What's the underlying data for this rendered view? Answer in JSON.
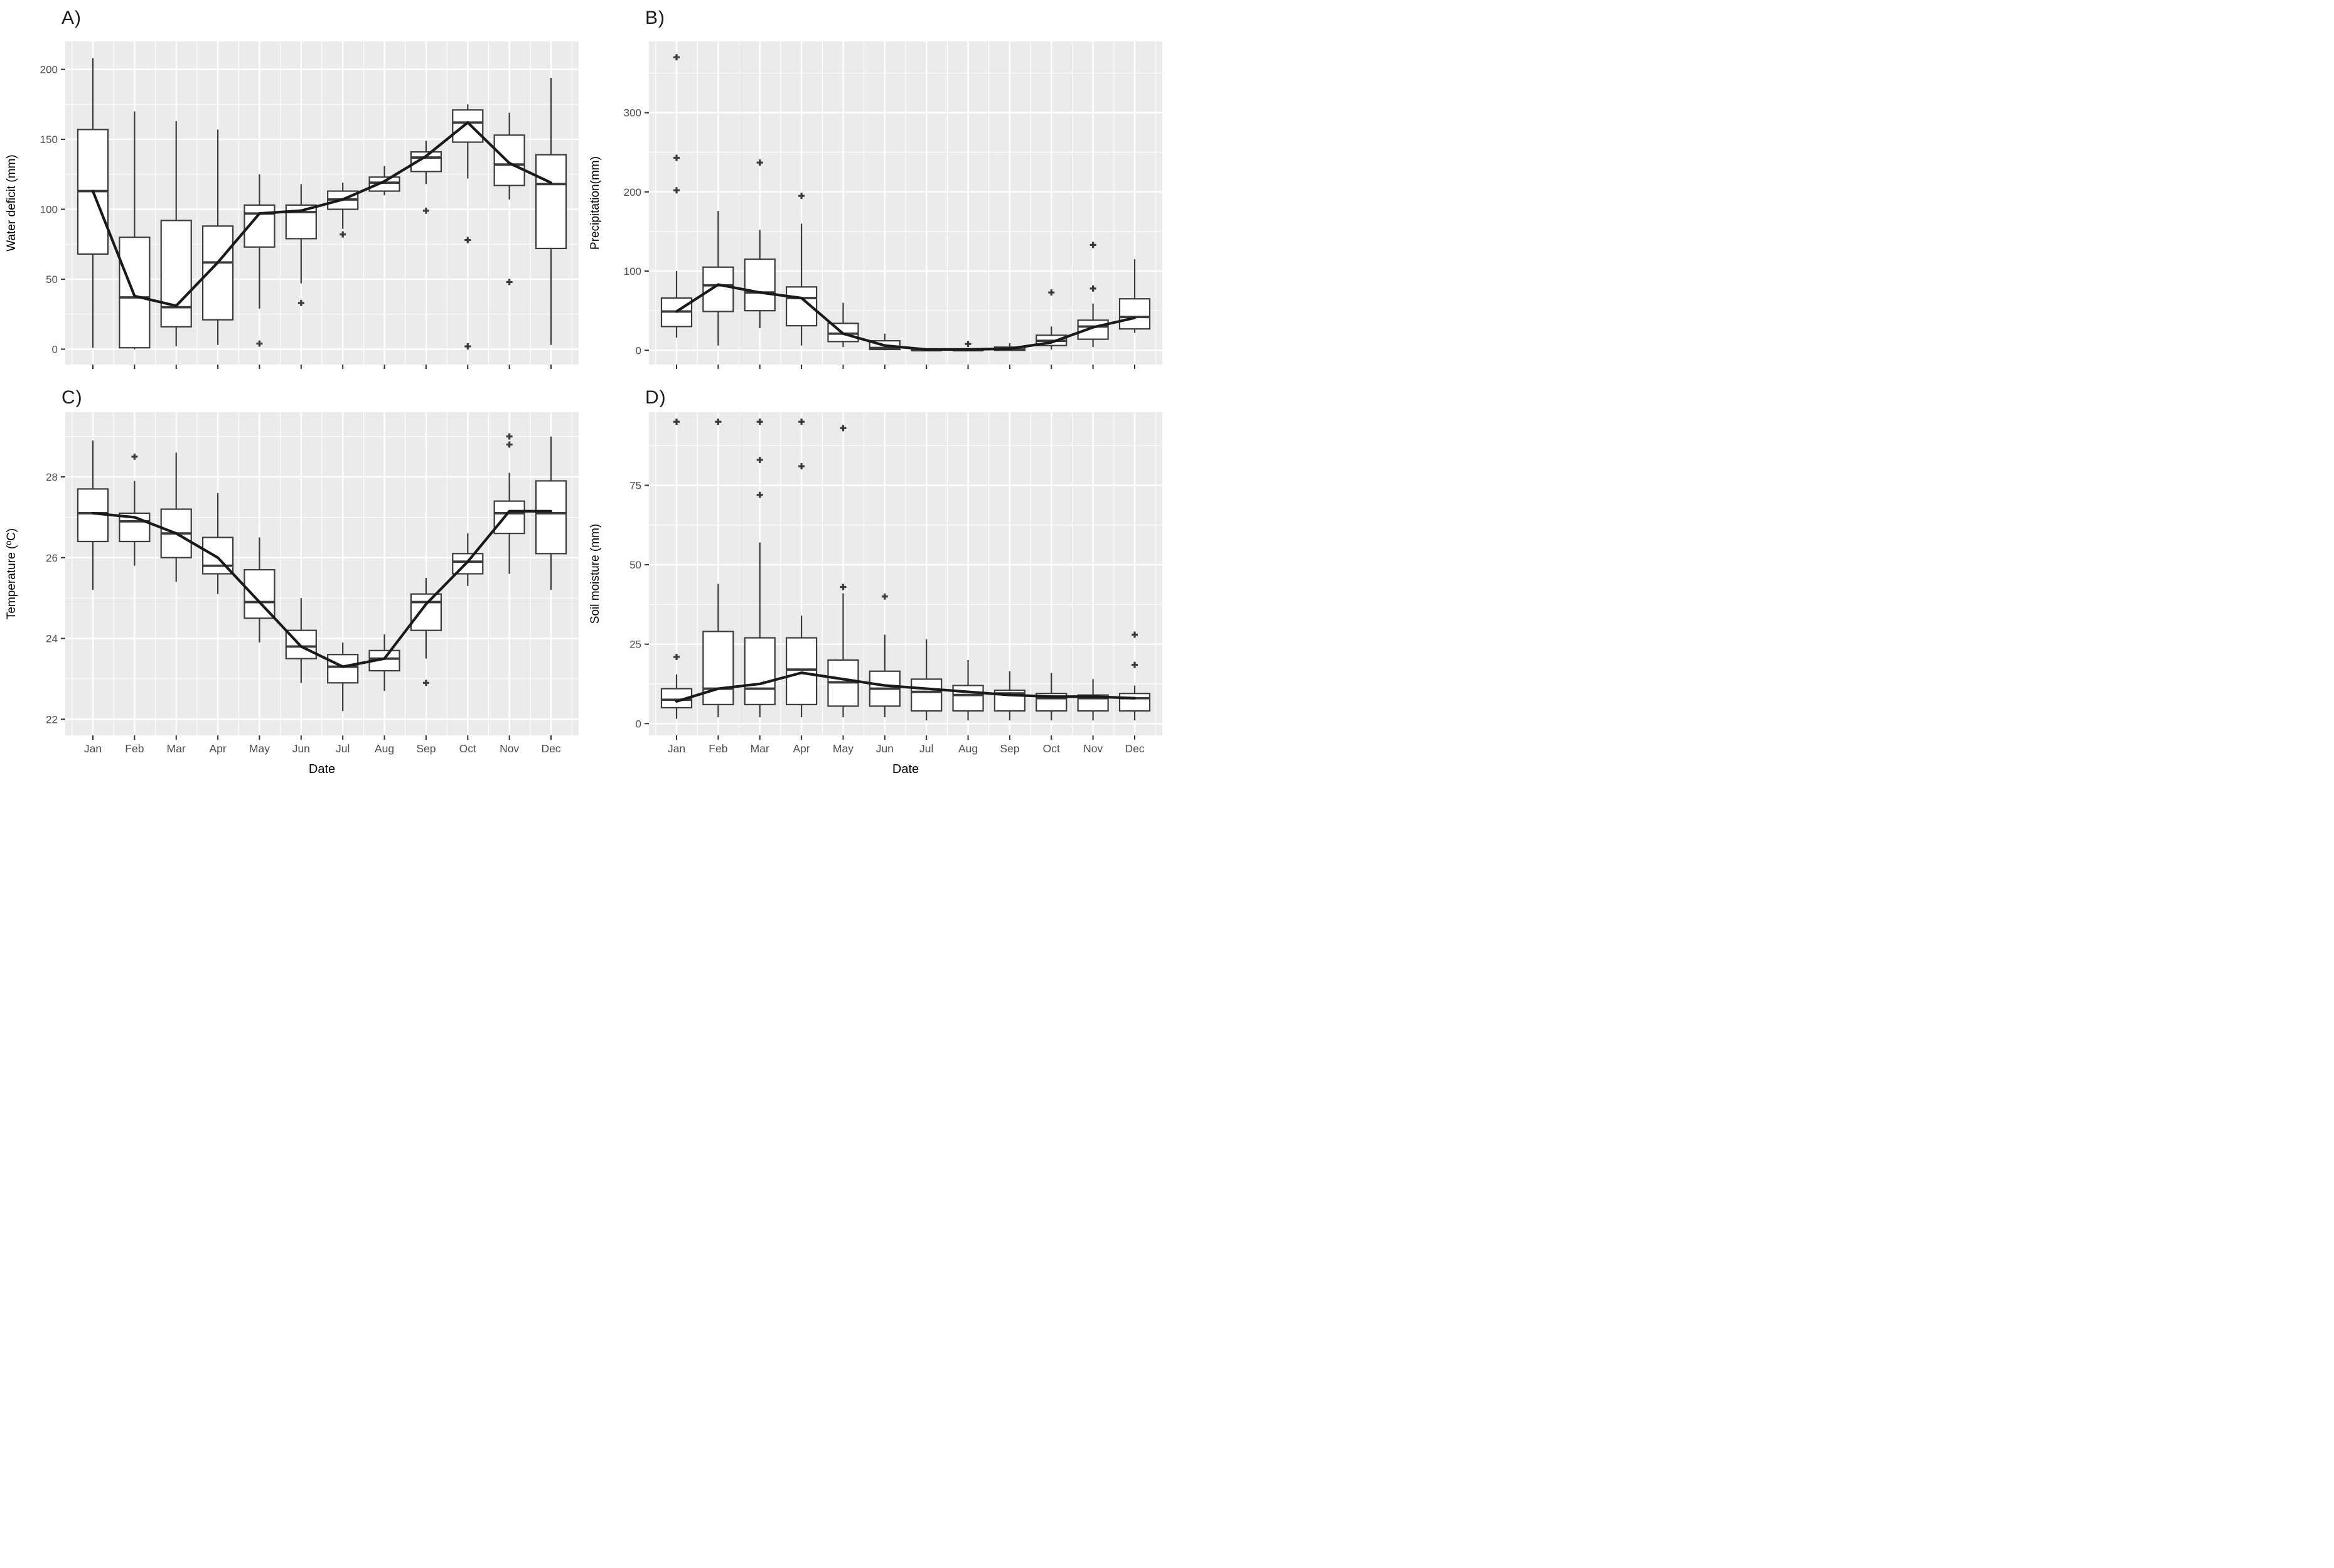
{
  "page": {
    "background": "#ffffff"
  },
  "months": [
    "Jan",
    "Feb",
    "Mar",
    "Apr",
    "May",
    "Jun",
    "Jul",
    "Aug",
    "Sep",
    "Oct",
    "Nov",
    "Dec"
  ],
  "colors": {
    "panel_background": "#ebebeb",
    "grid_line": "#ffffff",
    "box_stroke": "#3b3b3b",
    "box_fill": "#ffffff",
    "mean_line": "#1a1a1a",
    "tick_label": "#4d4d4d",
    "axis_title": "#000000",
    "outlier": "#3b3b3b"
  },
  "chart_data": [
    {
      "id": "A",
      "title": "A)",
      "type": "box",
      "ylabel": "Water deficit (mm)",
      "xlabel": "",
      "show_x_labels": false,
      "yticks": [
        0,
        50,
        100,
        150,
        200
      ],
      "ylim": [
        -11,
        220
      ],
      "grid": true,
      "legend": "none",
      "boxes": [
        {
          "m": "Jan",
          "low": 1,
          "q1": 68,
          "med": 113,
          "q3": 157,
          "high": 208,
          "out": []
        },
        {
          "m": "Feb",
          "low": 0,
          "q1": 1,
          "med": 37,
          "q3": 80,
          "high": 170,
          "out": []
        },
        {
          "m": "Mar",
          "low": 2,
          "q1": 16,
          "med": 30,
          "q3": 92,
          "high": 163,
          "out": []
        },
        {
          "m": "Apr",
          "low": 3,
          "q1": 21,
          "med": 62,
          "q3": 88,
          "high": 157,
          "out": []
        },
        {
          "m": "May",
          "low": 29,
          "q1": 73,
          "med": 97,
          "q3": 103,
          "high": 125,
          "out": [
            4
          ]
        },
        {
          "m": "Jun",
          "low": 47,
          "q1": 79,
          "med": 98,
          "q3": 103,
          "high": 118,
          "out": [
            33
          ]
        },
        {
          "m": "Jul",
          "low": 86,
          "q1": 100,
          "med": 107,
          "q3": 113,
          "high": 119,
          "out": [
            82
          ]
        },
        {
          "m": "Aug",
          "low": 110,
          "q1": 113,
          "med": 119,
          "q3": 123,
          "high": 131,
          "out": []
        },
        {
          "m": "Sep",
          "low": 118,
          "q1": 127,
          "med": 137,
          "q3": 141,
          "high": 149,
          "out": [
            99
          ]
        },
        {
          "m": "Oct",
          "low": 122,
          "q1": 148,
          "med": 162,
          "q3": 171,
          "high": 175,
          "out": [
            78,
            2
          ]
        },
        {
          "m": "Nov",
          "low": 107,
          "q1": 117,
          "med": 132,
          "q3": 153,
          "high": 169,
          "out": [
            48
          ]
        },
        {
          "m": "Dec",
          "low": 3,
          "q1": 72,
          "med": 118,
          "q3": 139,
          "high": 194,
          "out": []
        }
      ],
      "mean_line": [
        113,
        38,
        31,
        62,
        97,
        99,
        107,
        120,
        138,
        162,
        133,
        119
      ]
    },
    {
      "id": "B",
      "title": "B)",
      "type": "box",
      "ylabel": "Precipitation(mm)",
      "xlabel": "",
      "show_x_labels": false,
      "yticks": [
        0,
        100,
        200,
        300
      ],
      "ylim": [
        -18,
        390
      ],
      "grid": true,
      "legend": "none",
      "boxes": [
        {
          "m": "Jan",
          "low": 16,
          "q1": 30,
          "med": 49,
          "q3": 66,
          "high": 100,
          "out": [
            370,
            243,
            202
          ]
        },
        {
          "m": "Feb",
          "low": 6,
          "q1": 49,
          "med": 82,
          "q3": 105,
          "high": 176,
          "out": []
        },
        {
          "m": "Mar",
          "low": 28,
          "q1": 50,
          "med": 73,
          "q3": 115,
          "high": 152,
          "out": [
            237
          ]
        },
        {
          "m": "Apr",
          "low": 6,
          "q1": 31,
          "med": 66,
          "q3": 80,
          "high": 160,
          "out": [
            195
          ]
        },
        {
          "m": "May",
          "low": 4,
          "q1": 11,
          "med": 21,
          "q3": 34,
          "high": 60,
          "out": []
        },
        {
          "m": "Jun",
          "low": 0,
          "q1": 1,
          "med": 3,
          "q3": 12,
          "high": 21,
          "out": []
        },
        {
          "m": "Jul",
          "low": 0,
          "q1": 0,
          "med": 0,
          "q3": 1,
          "high": 2,
          "out": []
        },
        {
          "m": "Aug",
          "low": 0,
          "q1": 0,
          "med": 0,
          "q3": 1,
          "high": 2,
          "out": [
            8
          ]
        },
        {
          "m": "Sep",
          "low": 0,
          "q1": 0,
          "med": 1,
          "q3": 4,
          "high": 9,
          "out": []
        },
        {
          "m": "Oct",
          "low": 1,
          "q1": 6,
          "med": 12,
          "q3": 19,
          "high": 30,
          "out": [
            73
          ]
        },
        {
          "m": "Nov",
          "low": 4,
          "q1": 14,
          "med": 30,
          "q3": 38,
          "high": 59,
          "out": [
            133,
            78
          ]
        },
        {
          "m": "Dec",
          "low": 22,
          "q1": 27,
          "med": 42,
          "q3": 65,
          "high": 115,
          "out": []
        }
      ],
      "mean_line": [
        49,
        83,
        73,
        66,
        21,
        6,
        1,
        1,
        2,
        10,
        29,
        41
      ]
    },
    {
      "id": "C",
      "title": "C)",
      "type": "box",
      "ylabel": "Temperature (ºC)",
      "xlabel": "Date",
      "show_x_labels": true,
      "yticks": [
        22,
        24,
        26,
        28
      ],
      "ylim": [
        21.6,
        29.6
      ],
      "grid": true,
      "legend": "none",
      "boxes": [
        {
          "m": "Jan",
          "low": 25.2,
          "q1": 26.4,
          "med": 27.1,
          "q3": 27.7,
          "high": 28.9,
          "out": []
        },
        {
          "m": "Feb",
          "low": 25.8,
          "q1": 26.4,
          "med": 26.9,
          "q3": 27.1,
          "high": 27.9,
          "out": [
            28.5
          ]
        },
        {
          "m": "Mar",
          "low": 25.4,
          "q1": 26.0,
          "med": 26.6,
          "q3": 27.2,
          "high": 28.6,
          "out": []
        },
        {
          "m": "Apr",
          "low": 25.1,
          "q1": 25.6,
          "med": 25.8,
          "q3": 26.5,
          "high": 27.6,
          "out": []
        },
        {
          "m": "May",
          "low": 23.9,
          "q1": 24.5,
          "med": 24.9,
          "q3": 25.7,
          "high": 26.5,
          "out": []
        },
        {
          "m": "Jun",
          "low": 22.9,
          "q1": 23.5,
          "med": 23.8,
          "q3": 24.2,
          "high": 25.0,
          "out": []
        },
        {
          "m": "Jul",
          "low": 22.2,
          "q1": 22.9,
          "med": 23.3,
          "q3": 23.6,
          "high": 23.9,
          "out": []
        },
        {
          "m": "Aug",
          "low": 22.7,
          "q1": 23.2,
          "med": 23.5,
          "q3": 23.7,
          "high": 24.1,
          "out": []
        },
        {
          "m": "Sep",
          "low": 23.5,
          "q1": 24.2,
          "med": 24.9,
          "q3": 25.1,
          "high": 25.5,
          "out": [
            22.9
          ]
        },
        {
          "m": "Oct",
          "low": 25.3,
          "q1": 25.6,
          "med": 25.9,
          "q3": 26.1,
          "high": 26.6,
          "out": []
        },
        {
          "m": "Nov",
          "low": 25.6,
          "q1": 26.6,
          "med": 27.1,
          "q3": 27.4,
          "high": 28.1,
          "out": [
            29.0,
            28.8
          ]
        },
        {
          "m": "Dec",
          "low": 25.2,
          "q1": 26.1,
          "med": 27.1,
          "q3": 27.9,
          "high": 29.0,
          "out": []
        }
      ],
      "mean_line": [
        27.1,
        27.0,
        26.6,
        26.0,
        24.9,
        23.8,
        23.3,
        23.5,
        24.85,
        25.9,
        27.15,
        27.15
      ]
    },
    {
      "id": "D",
      "title": "D)",
      "type": "box",
      "ylabel": "Soil moisture (mm)",
      "xlabel": "Date",
      "show_x_labels": true,
      "yticks": [
        0,
        25,
        50,
        75
      ],
      "ylim": [
        -3.7,
        98
      ],
      "grid": true,
      "legend": "none",
      "boxes": [
        {
          "m": "Jan",
          "low": 1.5,
          "q1": 5,
          "med": 7.5,
          "q3": 11,
          "high": 15.5,
          "out": [
            95,
            21
          ]
        },
        {
          "m": "Feb",
          "low": 2,
          "q1": 6,
          "med": 11,
          "q3": 29,
          "high": 44,
          "out": [
            95
          ]
        },
        {
          "m": "Mar",
          "low": 2,
          "q1": 6,
          "med": 11,
          "q3": 27,
          "high": 57,
          "out": [
            95,
            83,
            72
          ]
        },
        {
          "m": "Apr",
          "low": 2,
          "q1": 6,
          "med": 17,
          "q3": 27,
          "high": 34,
          "out": [
            95,
            81
          ]
        },
        {
          "m": "May",
          "low": 2,
          "q1": 5.5,
          "med": 13,
          "q3": 20,
          "high": 41,
          "out": [
            93,
            43
          ]
        },
        {
          "m": "Jun",
          "low": 2,
          "q1": 5.5,
          "med": 11,
          "q3": 16.5,
          "high": 28,
          "out": [
            40
          ]
        },
        {
          "m": "Jul",
          "low": 1,
          "q1": 4,
          "med": 10,
          "q3": 14,
          "high": 26.5,
          "out": []
        },
        {
          "m": "Aug",
          "low": 1,
          "q1": 4,
          "med": 9,
          "q3": 12,
          "high": 20,
          "out": []
        },
        {
          "m": "Sep",
          "low": 1,
          "q1": 4,
          "med": 9.5,
          "q3": 10.5,
          "high": 16.5,
          "out": []
        },
        {
          "m": "Oct",
          "low": 1,
          "q1": 4,
          "med": 8,
          "q3": 9.5,
          "high": 16,
          "out": []
        },
        {
          "m": "Nov",
          "low": 1,
          "q1": 4,
          "med": 8,
          "q3": 9,
          "high": 14,
          "out": []
        },
        {
          "m": "Dec",
          "low": 1,
          "q1": 4,
          "med": 8,
          "q3": 9.5,
          "high": 12,
          "out": [
            28,
            18.5
          ]
        }
      ],
      "mean_line": [
        7,
        11,
        12.5,
        16,
        14,
        12,
        11,
        10,
        9,
        8.5,
        8.5,
        8
      ]
    }
  ]
}
